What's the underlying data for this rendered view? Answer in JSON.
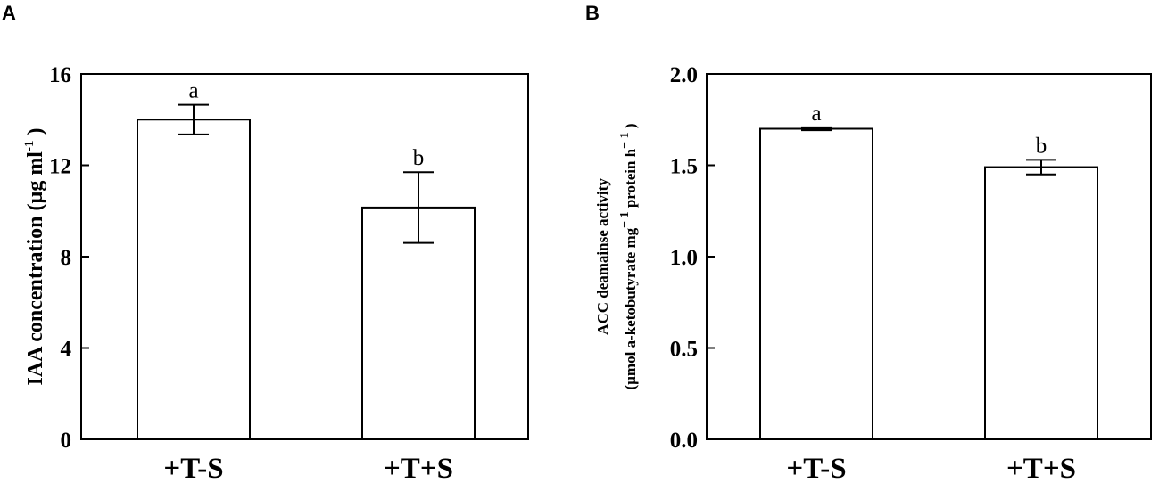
{
  "chart_data": [
    {
      "type": "bar",
      "panel": "A",
      "ylabel_main": "IAA concentration (µg ml",
      "ylabel_sup": "-1",
      "ylabel_end": " )",
      "xlabel": "",
      "categories": [
        "+T-S",
        "+T+S"
      ],
      "values": [
        14.0,
        10.15
      ],
      "errors": [
        0.65,
        1.55
      ],
      "significance": [
        "a",
        "b"
      ],
      "ylim": [
        0,
        16
      ],
      "yticks": [
        0,
        4,
        8,
        12,
        16
      ],
      "ytick_labels": [
        "0",
        "4",
        "8",
        "12",
        "16"
      ],
      "grid": false
    },
    {
      "type": "bar",
      "panel": "B",
      "ylabel_line1": "ACC deamainse activity",
      "ylabel_line2_a": "(µmol a-ketobutyrate mg",
      "ylabel_line2_sup1": "− 1",
      "ylabel_line2_b": " protein h",
      "ylabel_line2_sup2": "− 1",
      "ylabel_line2_end": " )",
      "xlabel": "",
      "categories": [
        "+T-S",
        "+T+S"
      ],
      "values": [
        1.7,
        1.49
      ],
      "errors": [
        0.008,
        0.04
      ],
      "significance": [
        "a",
        "b"
      ],
      "ylim": [
        0,
        2.0
      ],
      "yticks": [
        0,
        0.5,
        1.0,
        1.5,
        2.0
      ],
      "ytick_labels": [
        "0.0",
        "0.5",
        "1.0",
        "1.5",
        "2.0"
      ],
      "grid": false
    }
  ]
}
